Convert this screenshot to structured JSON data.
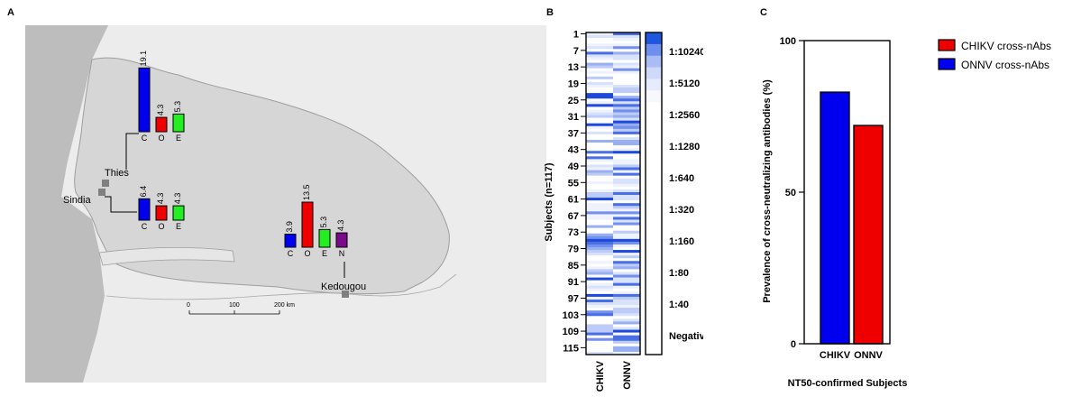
{
  "panel_letters": {
    "a": "A",
    "b": "B",
    "c": "C"
  },
  "map": {
    "colors": {
      "C": "#0000ee",
      "O": "#ee0000",
      "E": "#22ee22",
      "N": "#7a0a8a"
    },
    "scale_labels": [
      "0",
      "100",
      "200 km"
    ],
    "sites": [
      {
        "name": "Thies",
        "bars": [
          {
            "cat": "C",
            "value": 19.1,
            "label": "19.1"
          },
          {
            "cat": "O",
            "value": 4.3,
            "label": "4.3"
          },
          {
            "cat": "E",
            "value": 5.3,
            "label": "5.3"
          }
        ]
      },
      {
        "name": "Sindia",
        "bars": [
          {
            "cat": "C",
            "value": 6.4,
            "label": "6.4"
          },
          {
            "cat": "O",
            "value": 4.3,
            "label": "4.3"
          },
          {
            "cat": "E",
            "value": 4.3,
            "label": "4.3"
          }
        ]
      },
      {
        "name": "Kedougou",
        "bars": [
          {
            "cat": "C",
            "value": 3.9,
            "label": "3.9"
          },
          {
            "cat": "O",
            "value": 13.5,
            "label": "13.5"
          },
          {
            "cat": "E",
            "value": 5.3,
            "label": "5.3"
          },
          {
            "cat": "N",
            "value": 4.3,
            "label": "4.3"
          }
        ]
      }
    ]
  },
  "heatmap": {
    "ylabel": "Subjects (n=117)",
    "n": 117,
    "row_ticks": [
      "1",
      "7",
      "13",
      "19",
      "25",
      "31",
      "37",
      "43",
      "49",
      "55",
      "61",
      "67",
      "73",
      "79",
      "85",
      "91",
      "97",
      "103",
      "109",
      "115"
    ],
    "columns": [
      "CHIKV",
      "ONNV"
    ],
    "legend_levels": [
      "1:10240",
      "1:5120",
      "1:2560",
      "1:1280",
      "1:640",
      "1:320",
      "1:160",
      "1:80",
      "1:40",
      "Negative"
    ],
    "legend_colors": [
      "#1e56e0",
      "#6f8ff0",
      "#aabcf6",
      "#cfdafa",
      "#e6ecfc",
      "#f6f8fe",
      "#ffffff",
      "#ffffff",
      "#ffffff",
      "#ffffff"
    ]
  },
  "chart_data": [
    {
      "type": "heatmap",
      "rows": 117,
      "columns": [
        "CHIKV",
        "ONNV"
      ],
      "ylabel": "Subjects (n=117)",
      "yticks": [
        1,
        7,
        13,
        19,
        25,
        31,
        37,
        43,
        49,
        55,
        61,
        67,
        73,
        79,
        85,
        91,
        97,
        103,
        109,
        115
      ],
      "scale": [
        "1:10240",
        "1:5120",
        "1:2560",
        "1:1280",
        "1:640",
        "1:320",
        "1:160",
        "1:80",
        "1:40",
        "Negative"
      ]
    },
    {
      "type": "bar",
      "categories": [
        "CHIKV",
        "ONNV"
      ],
      "values": [
        83,
        72
      ],
      "colors": [
        "#0000ee",
        "#ee0000"
      ],
      "ylabel": "Prevalence of cross-neutralizing antibodies (%)",
      "xlabel": "NT50-confirmed Subjects",
      "ylim": [
        0,
        100
      ],
      "yticks": [
        0,
        50,
        100
      ],
      "legend": [
        {
          "name": "CHIKV cross-nAbs",
          "color": "#ee0000"
        },
        {
          "name": "ONNV cross-nAbs",
          "color": "#0000ee"
        }
      ],
      "legend_position": "top-right"
    }
  ]
}
